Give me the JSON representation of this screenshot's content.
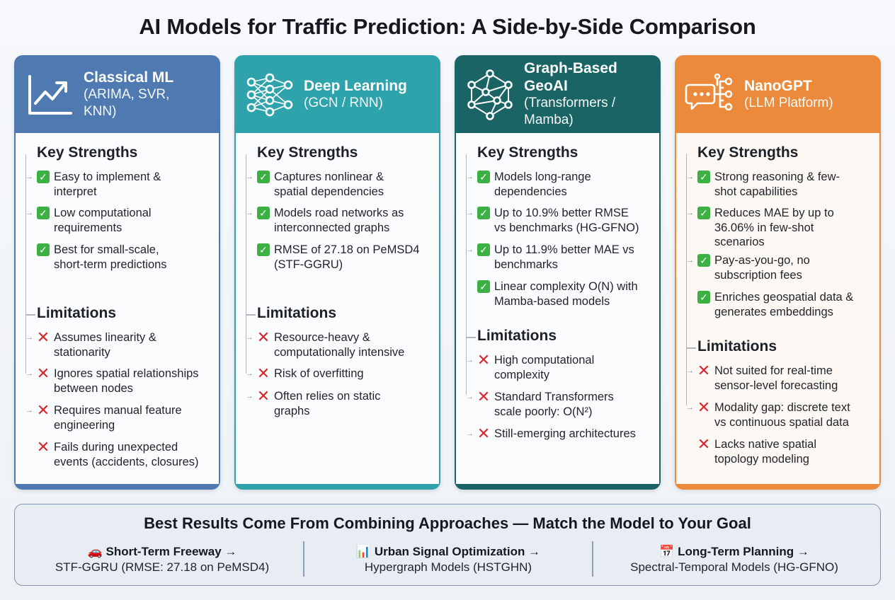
{
  "title": "AI Models for Traffic Prediction: A Side-by-Side Comparison",
  "colors": {
    "classical": "#4f7ab1",
    "deep": "#2fa3ac",
    "graph": "#1a6466",
    "nano": "#ec8a3c",
    "check": "#3cb043",
    "cross": "#d9262b"
  },
  "cards": [
    {
      "title": "Classical ML",
      "subtitle_lines": [
        "(ARIMA, SVR,",
        "KNN)"
      ],
      "icon": "trend-chart-icon",
      "strengths_label": "Key Strengths",
      "strengths": [
        [
          "Easy to implement &",
          "interpret"
        ],
        [
          "Low computational",
          "requirements"
        ],
        [
          "Best for small-scale,",
          "short-term predictions"
        ]
      ],
      "limitations_label": "Limitations",
      "limitations": [
        [
          "Assumes linearity &",
          "stationarity"
        ],
        [
          "Ignores spatial relationships",
          "between nodes"
        ],
        [
          "Requires manual feature",
          "engineering"
        ],
        [
          "Fails during unexpected",
          "events (accidents, closures)"
        ]
      ]
    },
    {
      "title": "Deep Learning",
      "subtitle_lines": [
        "(GCN / RNN)"
      ],
      "icon": "neural-network-icon",
      "strengths_label": "Key Strengths",
      "strengths": [
        [
          "Captures nonlinear &",
          "spatial dependencies"
        ],
        [
          "Models road networks as",
          "interconnected graphs"
        ],
        [
          "RMSE of 27.18 on PeMSD4",
          "(STF-GGRU)"
        ]
      ],
      "limitations_label": "Limitations",
      "limitations": [
        [
          "Resource-heavy &",
          "computationally intensive"
        ],
        [
          "Risk of overfitting"
        ],
        [
          "Often relies on static",
          "graphs"
        ]
      ]
    },
    {
      "title": "Graph-Based GeoAI",
      "title_lines": [
        "Graph-Based",
        "GeoAI"
      ],
      "subtitle_lines": [
        "(Transformers /",
        "Mamba)"
      ],
      "icon": "graph-network-icon",
      "strengths_label": "Key Strengths",
      "strengths": [
        [
          "Models long-range",
          "dependencies"
        ],
        [
          "Up to 10.9% better RMSE",
          "vs benchmarks (HG-GFNO)"
        ],
        [
          "Up to 11.9% better MAE vs",
          "benchmarks"
        ],
        [
          "Linear complexity O(N) with",
          "Mamba-based models"
        ]
      ],
      "limitations_label": "Limitations",
      "limitations": [
        [
          "High computational",
          "complexity"
        ],
        [
          "Standard Transformers",
          "scale poorly: O(N²)"
        ],
        [
          "Still-emerging architectures"
        ]
      ]
    },
    {
      "title": "NanoGPT",
      "subtitle_lines": [
        "(LLM Platform)"
      ],
      "icon": "chat-bubble-icon",
      "strengths_label": "Key Strengths",
      "strengths": [
        [
          "Strong reasoning & few-",
          "shot capabilities"
        ],
        [
          "Reduces MAE by up to",
          "36.06% in few-shot",
          "scenarios"
        ],
        [
          "Pay-as-you-go, no",
          "subscription fees"
        ],
        [
          "Enriches geospatial data &",
          "generates embeddings"
        ]
      ],
      "limitations_label": "Limitations",
      "limitations": [
        [
          "Not suited for real-time",
          "sensor-level forecasting"
        ],
        [
          "Modality gap: discrete text",
          "vs continuous spatial data"
        ],
        [
          "Lacks native spatial",
          "topology modeling"
        ]
      ]
    }
  ],
  "banner": {
    "title": "Best Results Come From Combining Approaches — Match the Model to Your Goal",
    "goals": [
      {
        "emoji": "🚗",
        "label": "Short-Term Freeway →",
        "model": "STF-GGRU (RMSE: 27.18 on PeMSD4)"
      },
      {
        "emoji": "📊",
        "label": "Urban Signal Optimization →",
        "model": "Hypergraph Models (HSTGHN)"
      },
      {
        "emoji": "📅",
        "label": "Long-Term Planning →",
        "model": "Spectral-Temporal Models (HG-GFNO)"
      }
    ]
  }
}
